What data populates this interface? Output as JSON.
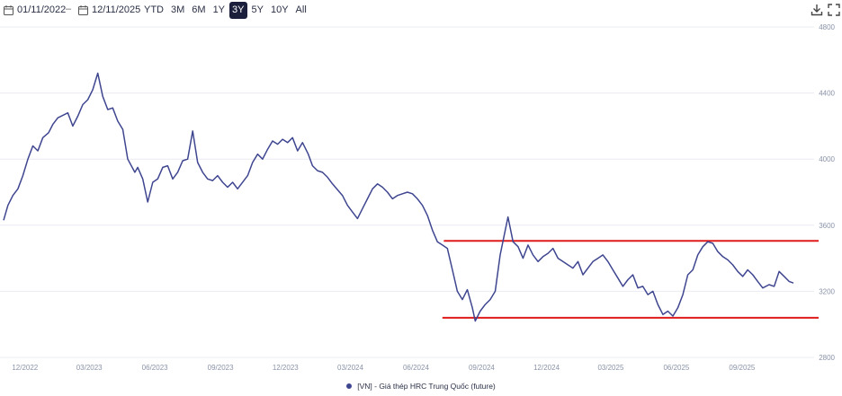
{
  "toolbar": {
    "date_from": "01/11/2022",
    "date_separator": "–",
    "date_to": "12/11/2025",
    "ranges": [
      "YTD",
      "3M",
      "6M",
      "1Y",
      "3Y",
      "5Y",
      "10Y",
      "All"
    ],
    "active_range": "3Y",
    "download_icon": "download-icon",
    "expand_icon": "expand-icon",
    "calendar_icon": "calendar-icon"
  },
  "colors": {
    "series": "#3f4690",
    "annotation": "#e01b1b",
    "grid": "#e9ecf2",
    "axis_text": "#8a93a8",
    "active_button": "#1b1f3b"
  },
  "chart_data": {
    "type": "line",
    "x_tick_labels": [
      "12/2022",
      "03/2023",
      "06/2023",
      "09/2023",
      "12/2023",
      "03/2024",
      "06/2024",
      "09/2024",
      "12/2024",
      "03/2025",
      "06/2025",
      "09/2025"
    ],
    "x_tick_dates": [
      "2022-12-01",
      "2023-03-01",
      "2023-06-01",
      "2023-09-01",
      "2023-12-01",
      "2024-03-01",
      "2024-06-01",
      "2024-09-01",
      "2024-12-01",
      "2025-03-01",
      "2025-06-01",
      "2025-09-01"
    ],
    "y_ticks": [
      2800,
      3200,
      3600,
      4000,
      4400,
      4800
    ],
    "ylim": [
      2800,
      4800
    ],
    "xlim": [
      "2022-11-01",
      "2025-11-12"
    ],
    "y_axis_position": "right",
    "grid": "horizontal",
    "series": [
      {
        "name": "[VN] - Giá thép HRC Trung Quốc (future)",
        "points": [
          [
            "2022-11-01",
            3630
          ],
          [
            "2022-11-07",
            3720
          ],
          [
            "2022-11-14",
            3780
          ],
          [
            "2022-11-21",
            3820
          ],
          [
            "2022-11-28",
            3900
          ],
          [
            "2022-12-05",
            4000
          ],
          [
            "2022-12-12",
            4080
          ],
          [
            "2022-12-19",
            4050
          ],
          [
            "2022-12-26",
            4130
          ],
          [
            "2023-01-03",
            4160
          ],
          [
            "2023-01-09",
            4210
          ],
          [
            "2023-01-16",
            4250
          ],
          [
            "2023-01-30",
            4280
          ],
          [
            "2023-02-06",
            4200
          ],
          [
            "2023-02-13",
            4260
          ],
          [
            "2023-02-20",
            4330
          ],
          [
            "2023-02-27",
            4360
          ],
          [
            "2023-03-06",
            4420
          ],
          [
            "2023-03-13",
            4520
          ],
          [
            "2023-03-20",
            4380
          ],
          [
            "2023-03-27",
            4300
          ],
          [
            "2023-04-03",
            4310
          ],
          [
            "2023-04-10",
            4230
          ],
          [
            "2023-04-17",
            4180
          ],
          [
            "2023-04-24",
            4000
          ],
          [
            "2023-05-04",
            3920
          ],
          [
            "2023-05-08",
            3950
          ],
          [
            "2023-05-15",
            3880
          ],
          [
            "2023-05-22",
            3740
          ],
          [
            "2023-05-29",
            3860
          ],
          [
            "2023-06-05",
            3880
          ],
          [
            "2023-06-12",
            3950
          ],
          [
            "2023-06-19",
            3960
          ],
          [
            "2023-06-26",
            3880
          ],
          [
            "2023-07-03",
            3920
          ],
          [
            "2023-07-10",
            3990
          ],
          [
            "2023-07-17",
            4000
          ],
          [
            "2023-07-24",
            4170
          ],
          [
            "2023-07-31",
            3980
          ],
          [
            "2023-08-07",
            3920
          ],
          [
            "2023-08-14",
            3880
          ],
          [
            "2023-08-21",
            3870
          ],
          [
            "2023-08-28",
            3900
          ],
          [
            "2023-09-04",
            3860
          ],
          [
            "2023-09-11",
            3830
          ],
          [
            "2023-09-18",
            3860
          ],
          [
            "2023-09-25",
            3820
          ],
          [
            "2023-10-09",
            3900
          ],
          [
            "2023-10-16",
            3980
          ],
          [
            "2023-10-23",
            4030
          ],
          [
            "2023-10-30",
            4000
          ],
          [
            "2023-11-06",
            4060
          ],
          [
            "2023-11-13",
            4110
          ],
          [
            "2023-11-20",
            4090
          ],
          [
            "2023-11-27",
            4120
          ],
          [
            "2023-12-04",
            4100
          ],
          [
            "2023-12-11",
            4130
          ],
          [
            "2023-12-18",
            4050
          ],
          [
            "2023-12-25",
            4100
          ],
          [
            "2024-01-02",
            4030
          ],
          [
            "2024-01-08",
            3960
          ],
          [
            "2024-01-15",
            3930
          ],
          [
            "2024-01-22",
            3920
          ],
          [
            "2024-01-29",
            3890
          ],
          [
            "2024-02-05",
            3850
          ],
          [
            "2024-02-19",
            3780
          ],
          [
            "2024-02-26",
            3720
          ],
          [
            "2024-03-04",
            3680
          ],
          [
            "2024-03-11",
            3640
          ],
          [
            "2024-03-18",
            3700
          ],
          [
            "2024-03-25",
            3760
          ],
          [
            "2024-04-01",
            3820
          ],
          [
            "2024-04-08",
            3850
          ],
          [
            "2024-04-15",
            3830
          ],
          [
            "2024-04-22",
            3800
          ],
          [
            "2024-04-29",
            3760
          ],
          [
            "2024-05-06",
            3780
          ],
          [
            "2024-05-13",
            3790
          ],
          [
            "2024-05-20",
            3800
          ],
          [
            "2024-05-27",
            3790
          ],
          [
            "2024-06-03",
            3760
          ],
          [
            "2024-06-10",
            3720
          ],
          [
            "2024-06-17",
            3660
          ],
          [
            "2024-06-24",
            3570
          ],
          [
            "2024-07-01",
            3500
          ],
          [
            "2024-07-08",
            3480
          ],
          [
            "2024-07-15",
            3460
          ],
          [
            "2024-07-22",
            3330
          ],
          [
            "2024-07-29",
            3200
          ],
          [
            "2024-08-05",
            3150
          ],
          [
            "2024-08-12",
            3210
          ],
          [
            "2024-08-19",
            3100
          ],
          [
            "2024-08-23",
            3020
          ],
          [
            "2024-08-30",
            3080
          ],
          [
            "2024-09-06",
            3120
          ],
          [
            "2024-09-13",
            3150
          ],
          [
            "2024-09-20",
            3200
          ],
          [
            "2024-09-27",
            3420
          ],
          [
            "2024-10-08",
            3650
          ],
          [
            "2024-10-15",
            3500
          ],
          [
            "2024-10-22",
            3470
          ],
          [
            "2024-10-29",
            3400
          ],
          [
            "2024-11-05",
            3480
          ],
          [
            "2024-11-12",
            3420
          ],
          [
            "2024-11-19",
            3380
          ],
          [
            "2024-11-26",
            3410
          ],
          [
            "2024-12-03",
            3430
          ],
          [
            "2024-12-10",
            3460
          ],
          [
            "2024-12-17",
            3400
          ],
          [
            "2024-12-24",
            3380
          ],
          [
            "2024-12-31",
            3360
          ],
          [
            "2025-01-07",
            3340
          ],
          [
            "2025-01-14",
            3380
          ],
          [
            "2025-01-21",
            3300
          ],
          [
            "2025-02-04",
            3380
          ],
          [
            "2025-02-11",
            3400
          ],
          [
            "2025-02-18",
            3420
          ],
          [
            "2025-02-25",
            3380
          ],
          [
            "2025-03-04",
            3330
          ],
          [
            "2025-03-11",
            3280
          ],
          [
            "2025-03-18",
            3230
          ],
          [
            "2025-03-25",
            3270
          ],
          [
            "2025-04-01",
            3300
          ],
          [
            "2025-04-08",
            3220
          ],
          [
            "2025-04-15",
            3230
          ],
          [
            "2025-04-22",
            3180
          ],
          [
            "2025-04-29",
            3200
          ],
          [
            "2025-05-06",
            3120
          ],
          [
            "2025-05-13",
            3060
          ],
          [
            "2025-05-20",
            3080
          ],
          [
            "2025-05-27",
            3050
          ],
          [
            "2025-06-03",
            3100
          ],
          [
            "2025-06-10",
            3180
          ],
          [
            "2025-06-17",
            3300
          ],
          [
            "2025-06-24",
            3330
          ],
          [
            "2025-07-01",
            3420
          ],
          [
            "2025-07-08",
            3470
          ],
          [
            "2025-07-15",
            3500
          ],
          [
            "2025-07-22",
            3490
          ],
          [
            "2025-07-29",
            3440
          ],
          [
            "2025-08-05",
            3410
          ],
          [
            "2025-08-12",
            3390
          ],
          [
            "2025-08-19",
            3360
          ],
          [
            "2025-08-26",
            3320
          ],
          [
            "2025-09-02",
            3290
          ],
          [
            "2025-09-09",
            3330
          ],
          [
            "2025-09-16",
            3300
          ],
          [
            "2025-09-23",
            3260
          ],
          [
            "2025-09-30",
            3220
          ],
          [
            "2025-10-09",
            3240
          ],
          [
            "2025-10-16",
            3230
          ],
          [
            "2025-10-23",
            3320
          ],
          [
            "2025-10-30",
            3290
          ],
          [
            "2025-11-06",
            3260
          ],
          [
            "2025-11-12",
            3250
          ]
        ]
      }
    ],
    "annotations": [
      {
        "type": "horizontal-line",
        "y": 3505,
        "from": "2024-07-10",
        "to": "2025-11-12",
        "color": "#e01b1b"
      },
      {
        "type": "horizontal-line",
        "y": 3040,
        "from": "2024-07-08",
        "to": "2025-11-12",
        "color": "#e01b1b"
      }
    ],
    "legend": {
      "position": "bottom-center",
      "label": "[VN] - Giá thép HRC Trung Quốc (future)"
    }
  }
}
